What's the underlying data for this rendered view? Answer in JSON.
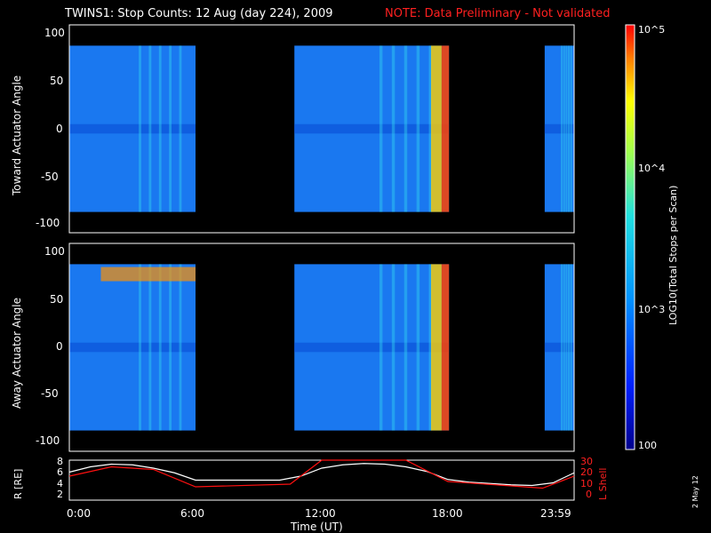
{
  "header": {
    "title": "TWINS1: Stop Counts: 12 Aug (day 224), 2009",
    "note": "NOTE: Data Preliminary - Not validated"
  },
  "footer_date": "2 May 12",
  "colorbar": {
    "label": "LOG10(Total Stops per Scan)",
    "ticks": [
      "10^5",
      "10^4",
      "10^3",
      "100"
    ],
    "range": [
      100,
      100000
    ]
  },
  "panels": [
    {
      "ylabel": "Toward Actuator Angle",
      "yticks": [
        "100",
        "50",
        "0",
        "-50",
        "-100"
      ]
    },
    {
      "ylabel": "Away Actuator Angle",
      "yticks": [
        "100",
        "50",
        "0",
        "-50",
        "-100"
      ]
    }
  ],
  "bottom_panel": {
    "left_label": "R [RE]",
    "right_label": "L Shell",
    "left_ticks": [
      "8",
      "6",
      "4",
      "2"
    ],
    "right_ticks": [
      "30",
      "20",
      "10",
      "0"
    ]
  },
  "xaxis": {
    "label": "Time (UT)",
    "ticks": [
      "0:00",
      "6:00",
      "12:00",
      "18:00",
      "23:59"
    ]
  },
  "chart_data": [
    {
      "type": "heatmap",
      "title": "Toward Actuator Angle",
      "xlabel": "Time (UT)",
      "ylabel": "Toward Actuator Angle",
      "xlim": [
        0,
        24
      ],
      "ylim": [
        -110,
        110
      ],
      "angle_range": [
        -88,
        88
      ],
      "data_intervals_hours": [
        [
          0,
          6.0
        ],
        [
          10.7,
          18.05
        ],
        [
          22.6,
          24
        ]
      ],
      "color_scale": "log10 counts 100 to 100000",
      "notes": [
        "high counts near 17.3-18.0 UT",
        "low counts near 0 deg"
      ]
    },
    {
      "type": "heatmap",
      "title": "Away Actuator Angle",
      "xlabel": "Time (UT)",
      "ylabel": "Away Actuator Angle",
      "xlim": [
        0,
        24
      ],
      "ylim": [
        -110,
        110
      ],
      "angle_range": [
        -88,
        88
      ],
      "data_intervals_hours": [
        [
          0,
          6.0
        ],
        [
          10.7,
          18.05
        ],
        [
          22.6,
          24
        ]
      ],
      "color_scale": "log10 counts 100 to 100000",
      "notes": [
        "enhanced band near 70-85 deg from 2-6 UT",
        "high counts near 17.5-18.0 UT"
      ]
    },
    {
      "type": "line",
      "xlabel": "Time (UT)",
      "xlim": [
        0,
        24
      ],
      "series": [
        {
          "name": "R [RE]",
          "axis": "left",
          "ylim": [
            2,
            8
          ],
          "x": [
            0,
            1,
            2,
            3,
            4,
            5,
            6,
            8,
            10,
            11,
            12,
            13,
            14,
            15,
            16,
            17,
            18,
            19,
            20,
            21,
            22,
            23,
            24
          ],
          "y": [
            6.2,
            7.0,
            7.4,
            7.3,
            6.8,
            6.1,
            5.0,
            5.0,
            5.0,
            5.6,
            6.8,
            7.3,
            7.5,
            7.4,
            7.0,
            6.3,
            5.1,
            4.7,
            4.5,
            4.3,
            4.2,
            4.6,
            6.1
          ]
        },
        {
          "name": "L Shell",
          "axis": "right",
          "ylim": [
            0,
            30
          ],
          "x": [
            0,
            2,
            4,
            6,
            10.5,
            12,
            16,
            18,
            22.5,
            24
          ],
          "y": [
            18,
            25,
            23,
            10,
            12,
            30,
            30,
            14,
            9,
            18
          ]
        }
      ]
    }
  ]
}
